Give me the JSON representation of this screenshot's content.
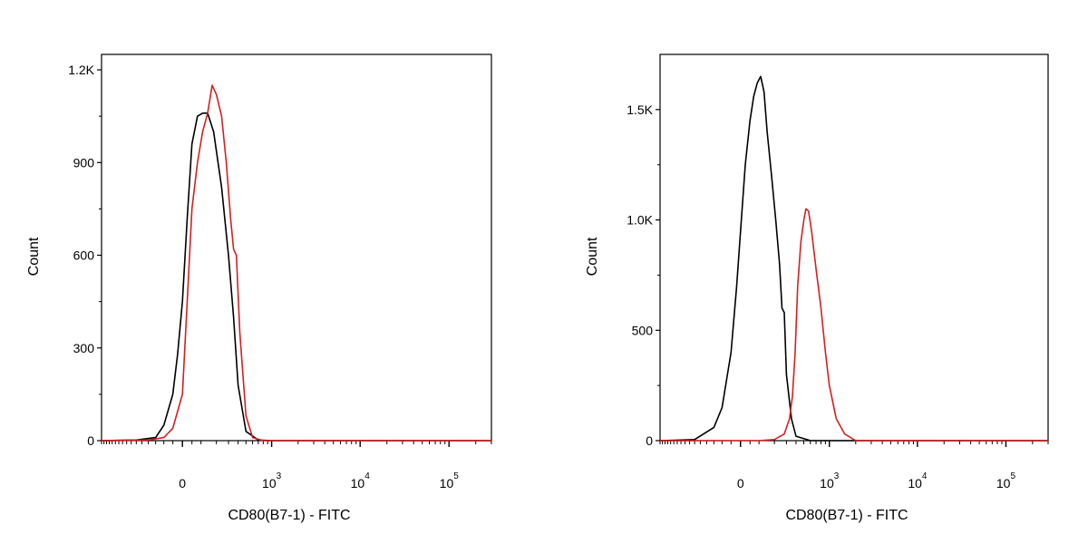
{
  "colors": {
    "control": "#000000",
    "stained": "#d42020",
    "axis": "#000000"
  },
  "chart_data": [
    {
      "type": "line",
      "xlabel": "CD80(B7-1) - FITC",
      "ylabel": "Count",
      "x_scale": "biexponential",
      "ylim": [
        0,
        1250
      ],
      "yticks": [
        {
          "value": 0,
          "label": "0"
        },
        {
          "value": 300,
          "label": "300"
        },
        {
          "value": 600,
          "label": "600"
        },
        {
          "value": 900,
          "label": "900"
        },
        {
          "value": 1200,
          "label": "1.2K"
        }
      ],
      "xticks": [
        {
          "value": 0,
          "label": "0",
          "exp": ""
        },
        {
          "value": 1000,
          "label": "10",
          "exp": "3"
        },
        {
          "value": 10000,
          "label": "10",
          "exp": "4"
        },
        {
          "value": 100000,
          "label": "10",
          "exp": "5"
        }
      ],
      "series": [
        {
          "color_key": "control",
          "x": [
            -800,
            -300,
            -150,
            -100,
            -50,
            -25,
            0,
            25,
            50,
            80,
            110,
            140,
            180,
            240,
            300,
            350,
            400,
            500,
            700,
            1000,
            10000,
            100000,
            300000
          ],
          "y": [
            0,
            2,
            10,
            50,
            150,
            280,
            450,
            720,
            960,
            1050,
            1060,
            1060,
            1000,
            820,
            600,
            400,
            180,
            30,
            2,
            0,
            0,
            0,
            0
          ]
        },
        {
          "color_key": "stained",
          "x": [
            -800,
            -200,
            -100,
            -50,
            0,
            25,
            50,
            80,
            110,
            140,
            170,
            200,
            240,
            280,
            320,
            350,
            380,
            420,
            500,
            600,
            800,
            1000,
            10000,
            100000,
            300000
          ],
          "y": [
            0,
            2,
            10,
            40,
            150,
            450,
            750,
            900,
            1000,
            1060,
            1150,
            1120,
            1050,
            900,
            720,
            620,
            600,
            350,
            80,
            10,
            0,
            0,
            0,
            0,
            0
          ]
        }
      ]
    },
    {
      "type": "line",
      "xlabel": "CD80(B7-1) - FITC",
      "ylabel": "Count",
      "x_scale": "biexponential",
      "ylim": [
        0,
        1750
      ],
      "yticks": [
        {
          "value": 0,
          "label": "0"
        },
        {
          "value": 500,
          "label": "500"
        },
        {
          "value": 1000,
          "label": "1.0K"
        },
        {
          "value": 1500,
          "label": "1.5K"
        }
      ],
      "xticks": [
        {
          "value": 0,
          "label": "0",
          "exp": ""
        },
        {
          "value": 1000,
          "label": "10",
          "exp": "3"
        },
        {
          "value": 10000,
          "label": "10",
          "exp": "4"
        },
        {
          "value": 100000,
          "label": "10",
          "exp": "5"
        }
      ],
      "series": [
        {
          "color_key": "control",
          "x": [
            -800,
            -300,
            -150,
            -100,
            -50,
            -20,
            0,
            25,
            50,
            70,
            90,
            110,
            130,
            150,
            180,
            210,
            240,
            260,
            280,
            300,
            350,
            400,
            600,
            1000,
            100000,
            300000
          ],
          "y": [
            0,
            5,
            60,
            150,
            400,
            700,
            950,
            1250,
            1450,
            1560,
            1620,
            1650,
            1580,
            1400,
            1200,
            1000,
            800,
            600,
            580,
            300,
            100,
            20,
            0,
            0,
            0,
            0
          ]
        },
        {
          "color_key": "stained",
          "x": [
            -800,
            100,
            200,
            280,
            330,
            360,
            390,
            420,
            460,
            500,
            530,
            570,
            620,
            700,
            800,
            900,
            1000,
            1200,
            1500,
            2000,
            10000,
            100000,
            300000
          ],
          "y": [
            0,
            0,
            5,
            30,
            100,
            200,
            400,
            700,
            900,
            1000,
            1050,
            1040,
            950,
            780,
            600,
            400,
            250,
            100,
            30,
            0,
            0,
            0,
            0
          ]
        }
      ]
    }
  ]
}
